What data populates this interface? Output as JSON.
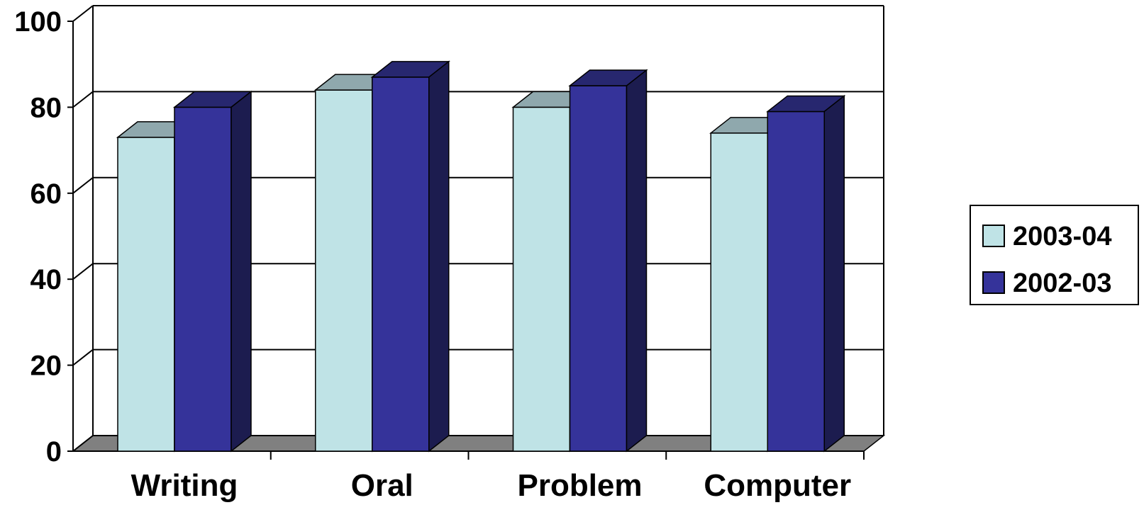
{
  "chart_data": {
    "type": "bar",
    "title": "",
    "xlabel": "",
    "ylabel": "",
    "categories": [
      "Writing",
      "Oral",
      "Problem",
      "Computer"
    ],
    "series": [
      {
        "name": "2003-04",
        "values": [
          73,
          84,
          80,
          74
        ]
      },
      {
        "name": "2002-03",
        "values": [
          80,
          87,
          85,
          79
        ]
      }
    ],
    "ylim": [
      0,
      100
    ],
    "yticks": [
      "0",
      "20",
      "40",
      "60",
      "80",
      "100"
    ],
    "grid": true,
    "style": "3d-clustered-column",
    "legend": "right",
    "colors": {
      "2003-04": {
        "front": "#bfe3e6",
        "top": "#8fa8ad",
        "side": "#8fa8ad"
      },
      "2002-03": {
        "front": "#35339a",
        "top": "#27276f",
        "side": "#1c1c4f"
      },
      "floor": "#808080",
      "grid": "#000000"
    }
  }
}
